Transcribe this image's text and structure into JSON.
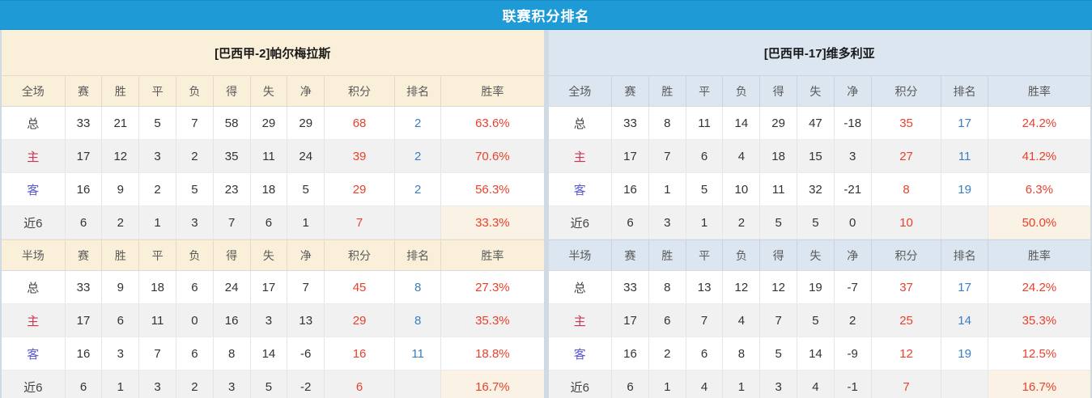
{
  "title": "联赛积分排名",
  "colors": {
    "title_bar_blue": "#1e9ad7",
    "left_theme_cream": "#faf0da",
    "right_theme_blue": "#dce6f0",
    "points_red": "#e8412c",
    "rank_blue": "#3a7fc1",
    "home_label_red": "#cc3355",
    "away_label_violet": "#5a5ad2",
    "alt_row_gray": "#f1f1f1"
  },
  "columns": {
    "full_label": "全场",
    "half_label": "半场",
    "stats": [
      "赛",
      "胜",
      "平",
      "负",
      "得",
      "失",
      "净"
    ],
    "points": "积分",
    "rank": "排名",
    "rate": "胜率"
  },
  "teams": [
    {
      "name": "[巴西甲-2]帕尔梅拉斯",
      "full": [
        {
          "label": "总",
          "type": "total",
          "stats": [
            "33",
            "21",
            "5",
            "7",
            "58",
            "29",
            "29"
          ],
          "points": "68",
          "rank": "2",
          "rate": "63.6%"
        },
        {
          "label": "主",
          "type": "home",
          "stats": [
            "17",
            "12",
            "3",
            "2",
            "35",
            "11",
            "24"
          ],
          "points": "39",
          "rank": "2",
          "rate": "70.6%"
        },
        {
          "label": "客",
          "type": "away",
          "stats": [
            "16",
            "9",
            "2",
            "5",
            "23",
            "18",
            "5"
          ],
          "points": "29",
          "rank": "2",
          "rate": "56.3%"
        },
        {
          "label": "近6",
          "type": "recent",
          "stats": [
            "6",
            "2",
            "1",
            "3",
            "7",
            "6",
            "1"
          ],
          "points": "7",
          "rank": "",
          "rate": "33.3%"
        }
      ],
      "half": [
        {
          "label": "总",
          "type": "total",
          "stats": [
            "33",
            "9",
            "18",
            "6",
            "24",
            "17",
            "7"
          ],
          "points": "45",
          "rank": "8",
          "rate": "27.3%"
        },
        {
          "label": "主",
          "type": "home",
          "stats": [
            "17",
            "6",
            "11",
            "0",
            "16",
            "3",
            "13"
          ],
          "points": "29",
          "rank": "8",
          "rate": "35.3%"
        },
        {
          "label": "客",
          "type": "away",
          "stats": [
            "16",
            "3",
            "7",
            "6",
            "8",
            "14",
            "-6"
          ],
          "points": "16",
          "rank": "11",
          "rate": "18.8%"
        },
        {
          "label": "近6",
          "type": "recent",
          "stats": [
            "6",
            "1",
            "3",
            "2",
            "3",
            "5",
            "-2"
          ],
          "points": "6",
          "rank": "",
          "rate": "16.7%"
        }
      ]
    },
    {
      "name": "[巴西甲-17]维多利亚",
      "full": [
        {
          "label": "总",
          "type": "total",
          "stats": [
            "33",
            "8",
            "11",
            "14",
            "29",
            "47",
            "-18"
          ],
          "points": "35",
          "rank": "17",
          "rate": "24.2%"
        },
        {
          "label": "主",
          "type": "home",
          "stats": [
            "17",
            "7",
            "6",
            "4",
            "18",
            "15",
            "3"
          ],
          "points": "27",
          "rank": "11",
          "rate": "41.2%"
        },
        {
          "label": "客",
          "type": "away",
          "stats": [
            "16",
            "1",
            "5",
            "10",
            "11",
            "32",
            "-21"
          ],
          "points": "8",
          "rank": "19",
          "rate": "6.3%"
        },
        {
          "label": "近6",
          "type": "recent",
          "stats": [
            "6",
            "3",
            "1",
            "2",
            "5",
            "5",
            "0"
          ],
          "points": "10",
          "rank": "",
          "rate": "50.0%"
        }
      ],
      "half": [
        {
          "label": "总",
          "type": "total",
          "stats": [
            "33",
            "8",
            "13",
            "12",
            "12",
            "19",
            "-7"
          ],
          "points": "37",
          "rank": "17",
          "rate": "24.2%"
        },
        {
          "label": "主",
          "type": "home",
          "stats": [
            "17",
            "6",
            "7",
            "4",
            "7",
            "5",
            "2"
          ],
          "points": "25",
          "rank": "14",
          "rate": "35.3%"
        },
        {
          "label": "客",
          "type": "away",
          "stats": [
            "16",
            "2",
            "6",
            "8",
            "5",
            "14",
            "-9"
          ],
          "points": "12",
          "rank": "19",
          "rate": "12.5%"
        },
        {
          "label": "近6",
          "type": "recent",
          "stats": [
            "6",
            "1",
            "4",
            "1",
            "3",
            "4",
            "-1"
          ],
          "points": "7",
          "rank": "",
          "rate": "16.7%"
        }
      ]
    }
  ]
}
